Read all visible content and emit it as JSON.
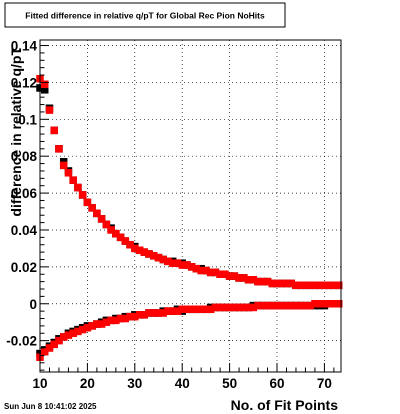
{
  "timestamp": "Sun Jun  8 10:41:02 2025",
  "chart_data": {
    "type": "scatter",
    "title": "Fitted difference in relative q/pT for Global Rec Pion NoHits",
    "xlabel": "No. of Fit Points",
    "ylabel": "difference in relative q/pT",
    "xlim": [
      10,
      73.5
    ],
    "ylim": [
      -0.037,
      0.143
    ],
    "grid": true,
    "x_ticks": [
      10,
      20,
      30,
      40,
      50,
      60,
      70
    ],
    "x_tick_labels": [
      "10",
      "20",
      "30",
      "40",
      "50",
      "60",
      "70"
    ],
    "y_ticks": [
      -0.02,
      0,
      0.02,
      0.04,
      0.06,
      0.08,
      0.1,
      0.12,
      0.14
    ],
    "y_tick_labels": [
      "-0.02",
      "0",
      "0.02",
      "0.04",
      "0.06",
      "0.08",
      "0.1",
      "0.12",
      "0.14"
    ],
    "series_colors": [
      "#000000",
      "#ff0000",
      "#000000",
      "#ff0000"
    ],
    "series": [
      {
        "marker": "square",
        "color": "#000000",
        "x": [
          10,
          11,
          12,
          13,
          14,
          15,
          16,
          17,
          18,
          19,
          20,
          21,
          22,
          23,
          24,
          25,
          26,
          27,
          28,
          29,
          30,
          31,
          32,
          33,
          34,
          35,
          36,
          37,
          38,
          39,
          40,
          41,
          42,
          43,
          44,
          45,
          46,
          47,
          48,
          49,
          50,
          51,
          52,
          53,
          54,
          55,
          56,
          57,
          58,
          59,
          60,
          61,
          62,
          63,
          64,
          65,
          66,
          67,
          68,
          69,
          70,
          71,
          72,
          73
        ],
        "y": [
          0.117,
          0.116,
          0.106,
          0.094,
          0.084,
          0.077,
          0.072,
          0.067,
          0.063,
          0.059,
          0.055,
          0.052,
          0.049,
          0.046,
          0.043,
          0.041,
          0.038,
          0.036,
          0.034,
          0.032,
          0.031,
          0.029,
          0.028,
          0.027,
          0.026,
          0.025,
          0.024,
          0.023,
          0.023,
          0.022,
          0.022,
          0.021,
          0.02,
          0.019,
          0.019,
          0.018,
          0.017,
          0.017,
          0.016,
          0.016,
          0.015,
          0.015,
          0.014,
          0.014,
          0.013,
          0.013,
          0.012,
          0.012,
          0.012,
          0.011,
          0.011,
          0.011,
          0.011,
          0.011,
          0.01,
          0.01,
          0.01,
          0.01,
          0.01,
          0.01,
          0.01,
          0.01,
          0.01,
          0.01
        ]
      },
      {
        "marker": "square",
        "color": "#ff0000",
        "x": [
          10,
          11,
          12,
          13,
          14,
          15,
          16,
          17,
          18,
          19,
          20,
          21,
          22,
          23,
          24,
          25,
          26,
          27,
          28,
          29,
          30,
          31,
          32,
          33,
          34,
          35,
          36,
          37,
          38,
          39,
          40,
          41,
          42,
          43,
          44,
          45,
          46,
          47,
          48,
          49,
          50,
          51,
          52,
          53,
          54,
          55,
          56,
          57,
          58,
          59,
          60,
          61,
          62,
          63,
          64,
          65,
          66,
          67,
          68,
          69,
          70,
          71,
          72,
          73
        ],
        "y": [
          0.122,
          0.119,
          0.105,
          0.094,
          0.084,
          0.075,
          0.071,
          0.067,
          0.063,
          0.059,
          0.055,
          0.052,
          0.049,
          0.046,
          0.043,
          0.04,
          0.038,
          0.036,
          0.034,
          0.032,
          0.03,
          0.029,
          0.028,
          0.027,
          0.026,
          0.025,
          0.024,
          0.023,
          0.022,
          0.022,
          0.021,
          0.021,
          0.02,
          0.019,
          0.018,
          0.018,
          0.017,
          0.017,
          0.016,
          0.016,
          0.015,
          0.015,
          0.014,
          0.014,
          0.013,
          0.013,
          0.012,
          0.012,
          0.012,
          0.011,
          0.011,
          0.011,
          0.011,
          0.011,
          0.01,
          0.01,
          0.01,
          0.01,
          0.01,
          0.01,
          0.01,
          0.01,
          0.01,
          0.01
        ]
      },
      {
        "marker": "square",
        "color": "#000000",
        "x": [
          10,
          11,
          12,
          13,
          14,
          15,
          16,
          17,
          18,
          19,
          20,
          21,
          22,
          23,
          24,
          25,
          26,
          27,
          28,
          29,
          30,
          31,
          32,
          33,
          34,
          35,
          36,
          37,
          38,
          39,
          40,
          41,
          42,
          43,
          44,
          45,
          46,
          47,
          48,
          49,
          50,
          51,
          52,
          53,
          54,
          55,
          56,
          57,
          58,
          59,
          60,
          61,
          62,
          63,
          64,
          65,
          66,
          67,
          68,
          69,
          70,
          71,
          72,
          73
        ],
        "y": [
          -0.027,
          -0.025,
          -0.023,
          -0.021,
          -0.019,
          -0.018,
          -0.016,
          -0.015,
          -0.014,
          -0.013,
          -0.012,
          -0.012,
          -0.011,
          -0.01,
          -0.009,
          -0.009,
          -0.008,
          -0.008,
          -0.007,
          -0.007,
          -0.006,
          -0.006,
          -0.006,
          -0.005,
          -0.005,
          -0.005,
          -0.004,
          -0.004,
          -0.004,
          -0.003,
          -0.004,
          -0.003,
          -0.003,
          -0.003,
          -0.003,
          -0.003,
          -0.002,
          -0.002,
          -0.002,
          -0.002,
          -0.002,
          -0.002,
          -0.002,
          -0.002,
          -0.002,
          -0.001,
          -0.001,
          -0.001,
          -0.001,
          -0.001,
          -0.001,
          -0.001,
          -0.001,
          -0.001,
          -0.001,
          -0.001,
          -0.001,
          -0.001,
          -0.001,
          -0.001,
          -0.001,
          0.0,
          0.0,
          0.0
        ]
      },
      {
        "marker": "square",
        "color": "#ff0000",
        "x": [
          10,
          11,
          12,
          13,
          14,
          15,
          16,
          17,
          18,
          19,
          20,
          21,
          22,
          23,
          24,
          25,
          26,
          27,
          28,
          29,
          30,
          31,
          32,
          33,
          34,
          35,
          36,
          37,
          38,
          39,
          40,
          41,
          42,
          43,
          44,
          45,
          46,
          47,
          48,
          49,
          50,
          51,
          52,
          53,
          54,
          55,
          56,
          57,
          58,
          59,
          60,
          61,
          62,
          63,
          64,
          65,
          66,
          67,
          68,
          69,
          70,
          71,
          72,
          73
        ],
        "y": [
          -0.029,
          -0.026,
          -0.024,
          -0.022,
          -0.02,
          -0.018,
          -0.017,
          -0.016,
          -0.015,
          -0.014,
          -0.013,
          -0.012,
          -0.011,
          -0.011,
          -0.01,
          -0.009,
          -0.009,
          -0.008,
          -0.008,
          -0.007,
          -0.007,
          -0.006,
          -0.006,
          -0.005,
          -0.005,
          -0.005,
          -0.005,
          -0.004,
          -0.004,
          -0.004,
          -0.003,
          -0.003,
          -0.003,
          -0.003,
          -0.003,
          -0.003,
          -0.003,
          -0.002,
          -0.002,
          -0.002,
          -0.002,
          -0.002,
          -0.002,
          -0.002,
          -0.002,
          -0.002,
          -0.001,
          -0.001,
          -0.001,
          -0.001,
          -0.001,
          -0.001,
          -0.001,
          -0.001,
          -0.001,
          -0.001,
          -0.001,
          -0.001,
          0.0,
          0.0,
          0.0,
          0.0,
          0.0,
          0.0
        ]
      }
    ]
  }
}
